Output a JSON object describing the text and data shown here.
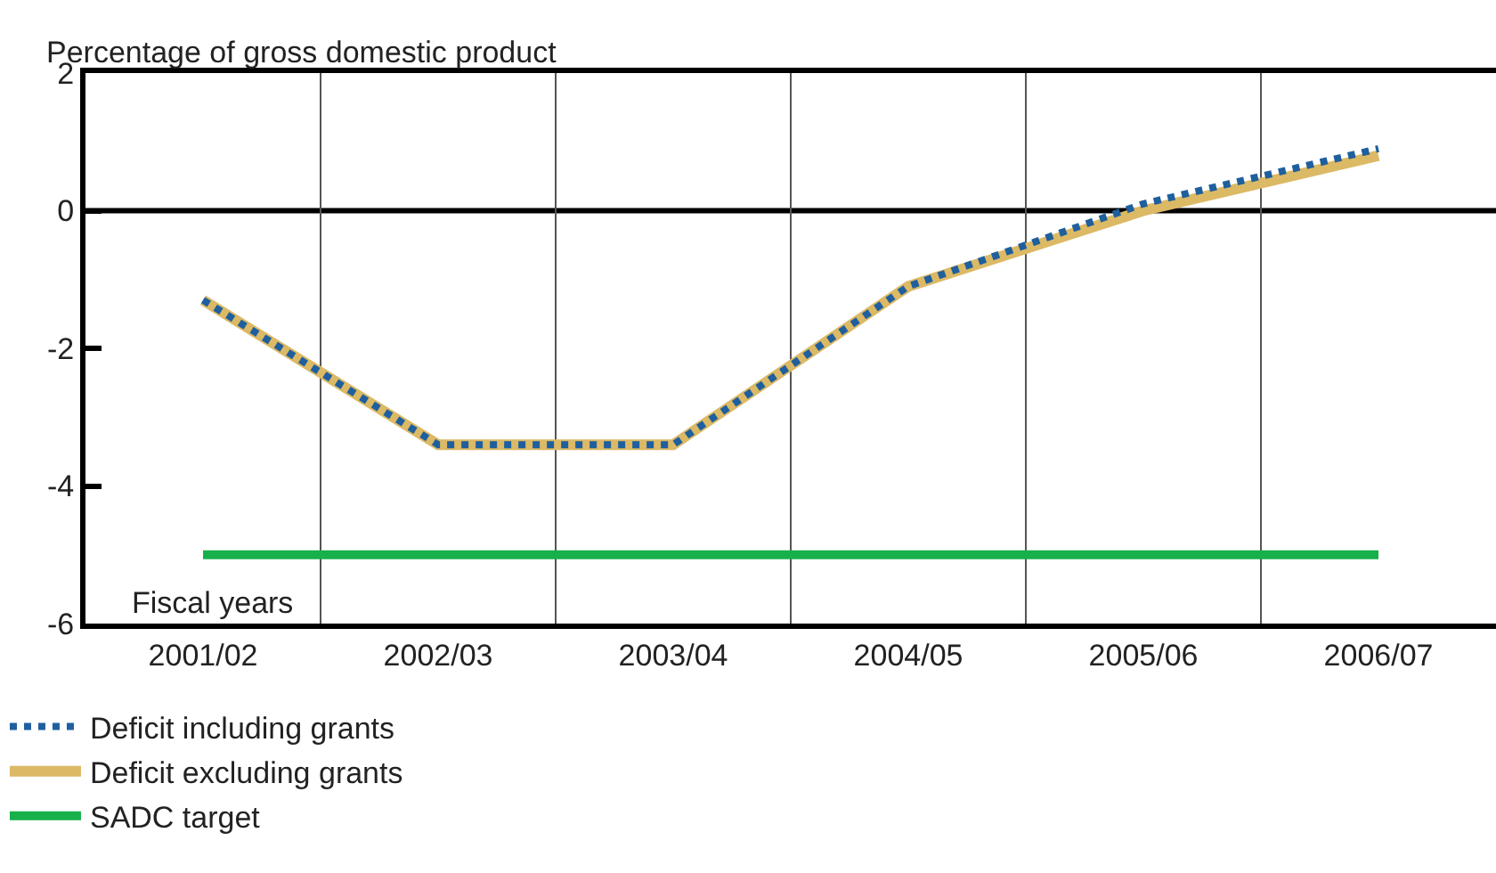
{
  "chart_data": {
    "type": "line",
    "ylabel": "Percentage of gross domestic product",
    "xlabel": "Fiscal years",
    "categories": [
      "2001/02",
      "2002/03",
      "2003/04",
      "2004/05",
      "2005/06",
      "2006/07"
    ],
    "series": [
      {
        "name": "Deficit including grants",
        "color": "#1f5f9e",
        "line_style": "dotted",
        "values": [
          -1.3,
          -3.4,
          -3.4,
          -1.1,
          0.1,
          0.9
        ]
      },
      {
        "name": "Deficit excluding grants",
        "color": "#dcb965",
        "line_style": "solid",
        "values": [
          -1.3,
          -3.4,
          -3.4,
          -1.1,
          0.0,
          0.8
        ]
      },
      {
        "name": "SADC target",
        "color": "#17b04b",
        "line_style": "solid",
        "values": [
          -5,
          -5,
          -5,
          -5,
          -5,
          -5
        ]
      }
    ],
    "ylim": [
      -6,
      2
    ],
    "yticks": [
      -6,
      -4,
      -2,
      0,
      2
    ],
    "ref_lines": [
      {
        "axis": "y",
        "value": 0,
        "color": "#000000"
      }
    ],
    "grid": "x",
    "legend": "bottom left",
    "marker": "none"
  }
}
